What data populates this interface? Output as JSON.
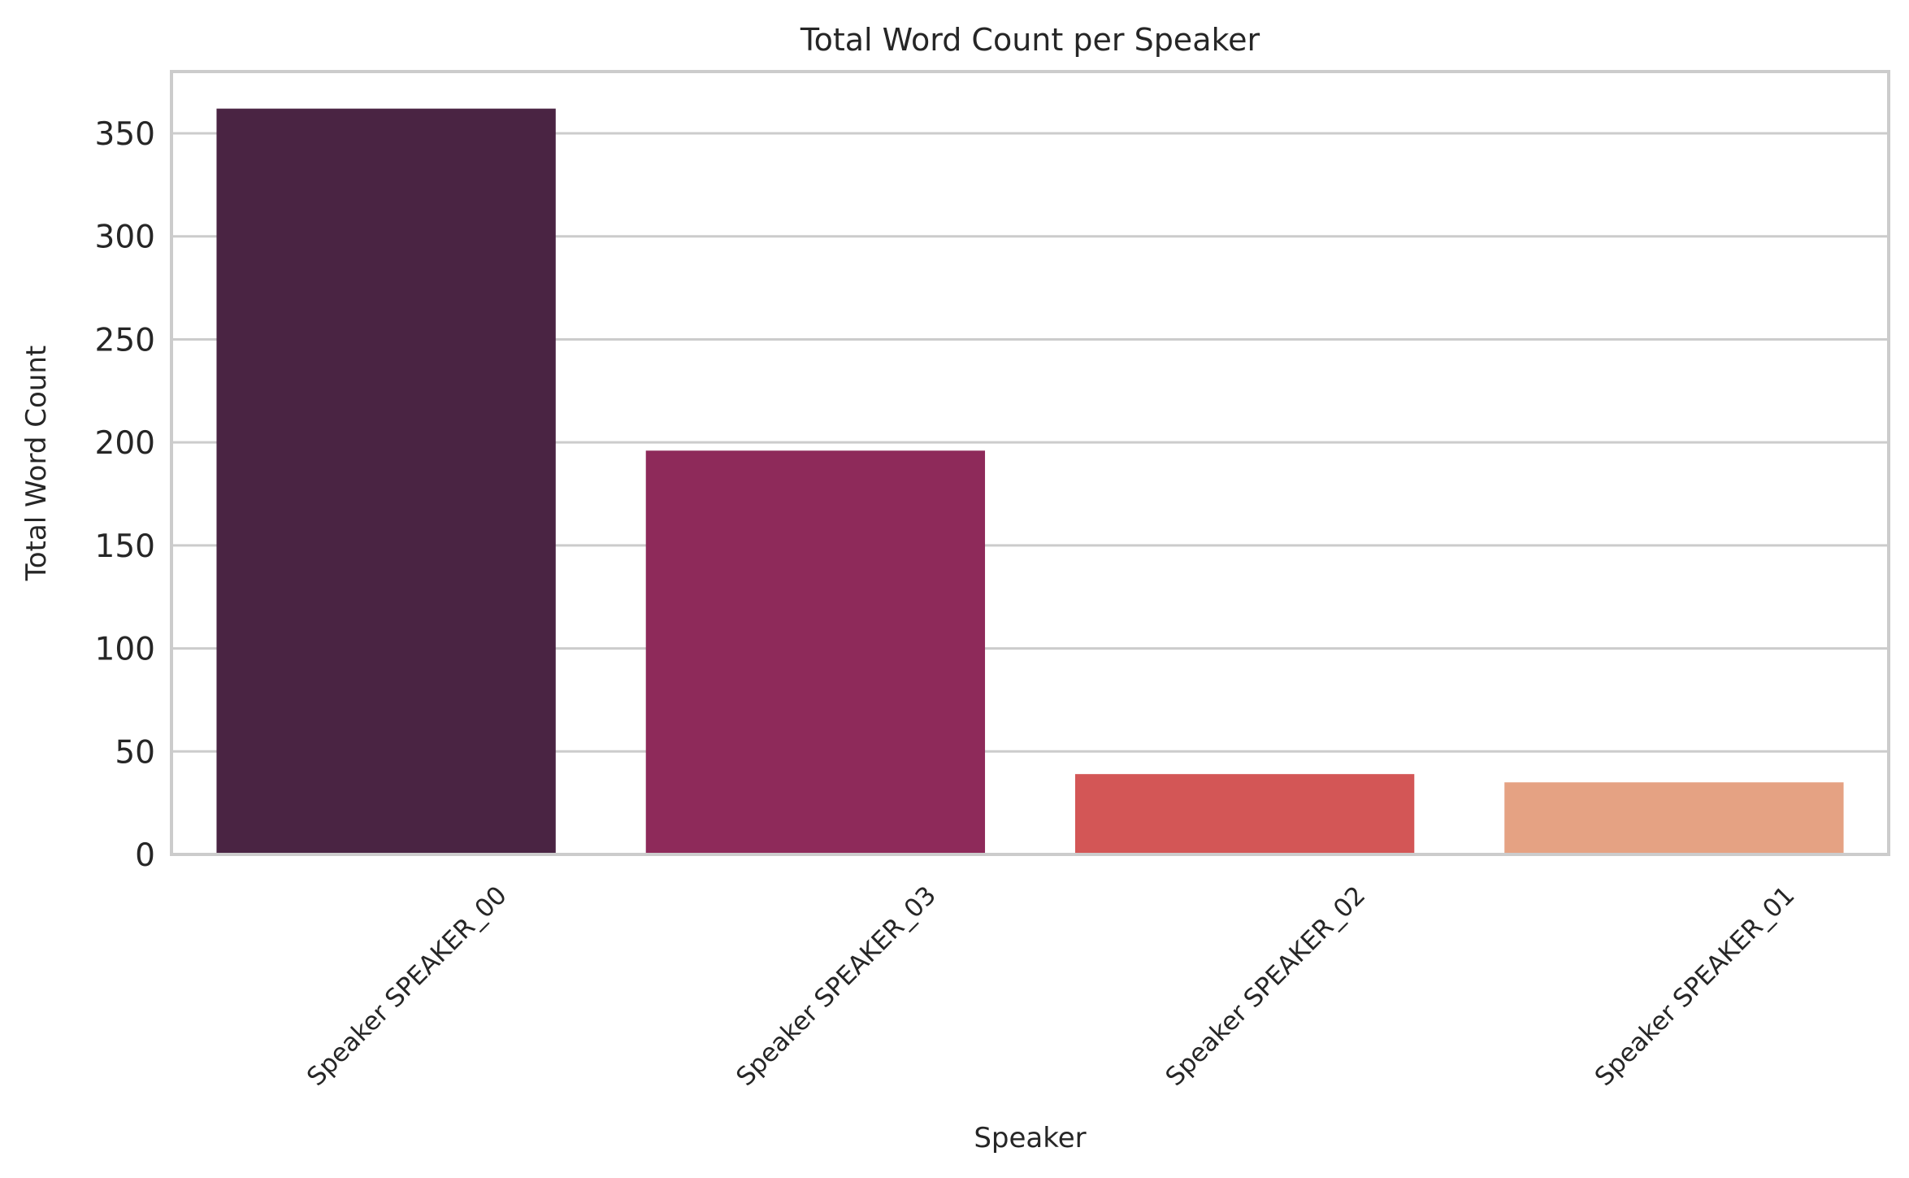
{
  "chart_data": {
    "type": "bar",
    "title": "Total Word Count per Speaker",
    "xlabel": "Speaker",
    "ylabel": "Total Word Count",
    "categories": [
      "Speaker SPEAKER_00",
      "Speaker SPEAKER_03",
      "Speaker SPEAKER_02",
      "Speaker SPEAKER_01"
    ],
    "values": [
      362,
      196,
      39,
      35
    ],
    "colors": [
      "#4a2443",
      "#8e2a5a",
      "#d35656",
      "#e5a283"
    ],
    "ylim": [
      0,
      380
    ],
    "yticks": [
      0,
      50,
      100,
      150,
      200,
      250,
      300,
      350
    ],
    "grid": "horizontal",
    "legend": "none"
  }
}
